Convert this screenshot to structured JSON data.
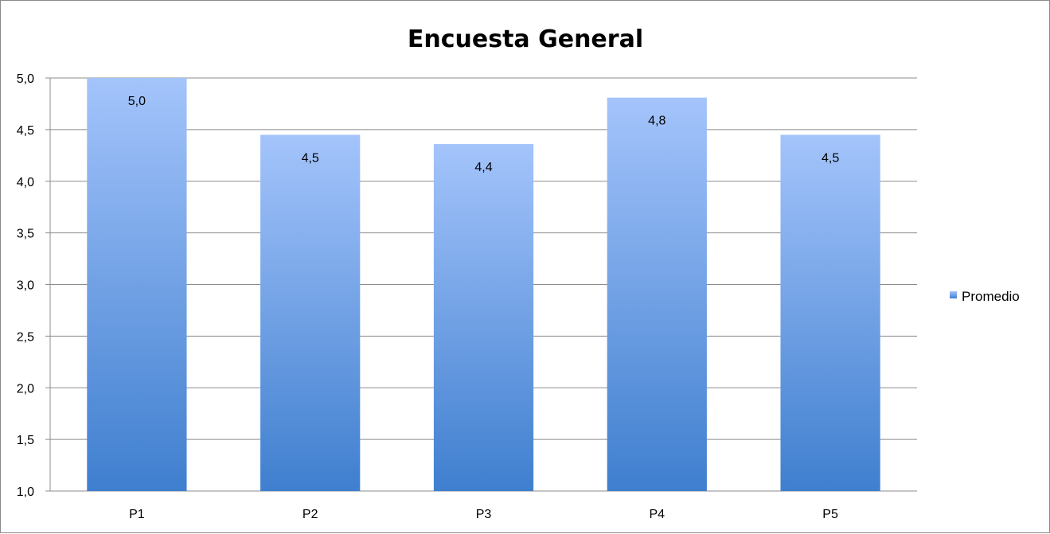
{
  "chart_data": {
    "type": "bar",
    "title": "Encuesta General",
    "xlabel": "",
    "ylabel": "",
    "categories": [
      "P1",
      "P2",
      "P3",
      "P4",
      "P5"
    ],
    "series": [
      {
        "name": "Promedio",
        "values": [
          5.0,
          4.45,
          4.36,
          4.81,
          4.45
        ]
      }
    ],
    "data_labels": [
      "5,0",
      "4,5",
      "4,4",
      "4,8",
      "4,5"
    ],
    "ylim": [
      1.0,
      5.0
    ],
    "y_ticks": [
      "1,0",
      "1,5",
      "2,0",
      "2,5",
      "3,0",
      "3,5",
      "4,0",
      "4,5",
      "5,0"
    ],
    "grid": true,
    "legend": "right",
    "colors": {
      "bar_top": "#a4c4fb",
      "bar_bottom": "#3f7fcf",
      "grid": "#8c8c8c"
    }
  }
}
